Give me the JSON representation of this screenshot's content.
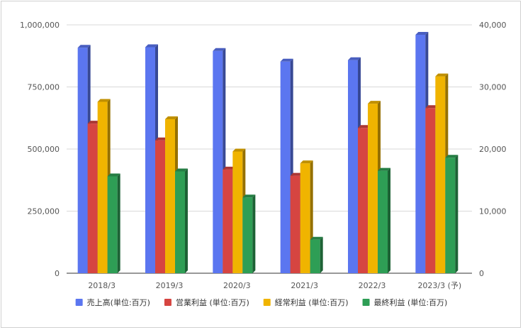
{
  "chart_data": {
    "type": "bar",
    "style": "3d-clustered",
    "categories": [
      "2018/3",
      "2019/3",
      "2020/3",
      "2021/3",
      "2022/3",
      "2023/3 (予)"
    ],
    "series": [
      {
        "name": "売上高(単位:百万)",
        "axis": "left",
        "color": "#5b76f0",
        "values": [
          908000,
          910000,
          895000,
          852000,
          858000,
          960000
        ]
      },
      {
        "name": "営業利益 (単位:百万)",
        "axis": "right",
        "color": "#d64541",
        "values": [
          24100,
          21400,
          16700,
          15700,
          23400,
          26600
        ]
      },
      {
        "name": "経常利益 (単位:百万)",
        "axis": "right",
        "color": "#f0b400",
        "values": [
          27600,
          24800,
          19600,
          17700,
          27300,
          31700
        ]
      },
      {
        "name": "最終利益 (単位:百万)",
        "axis": "right",
        "color": "#2e9e55",
        "values": [
          15600,
          16400,
          12200,
          5400,
          16500,
          18600
        ]
      }
    ],
    "left_axis": {
      "range": [
        0,
        1000000
      ],
      "ticks": [
        "0",
        "250,000",
        "500,000",
        "750,000",
        "1,000,000"
      ]
    },
    "right_axis": {
      "range": [
        0,
        40000
      ],
      "ticks": [
        "0",
        "10,000",
        "20,000",
        "30,000",
        "40,000"
      ]
    },
    "grid": true,
    "legend_position": "bottom"
  }
}
